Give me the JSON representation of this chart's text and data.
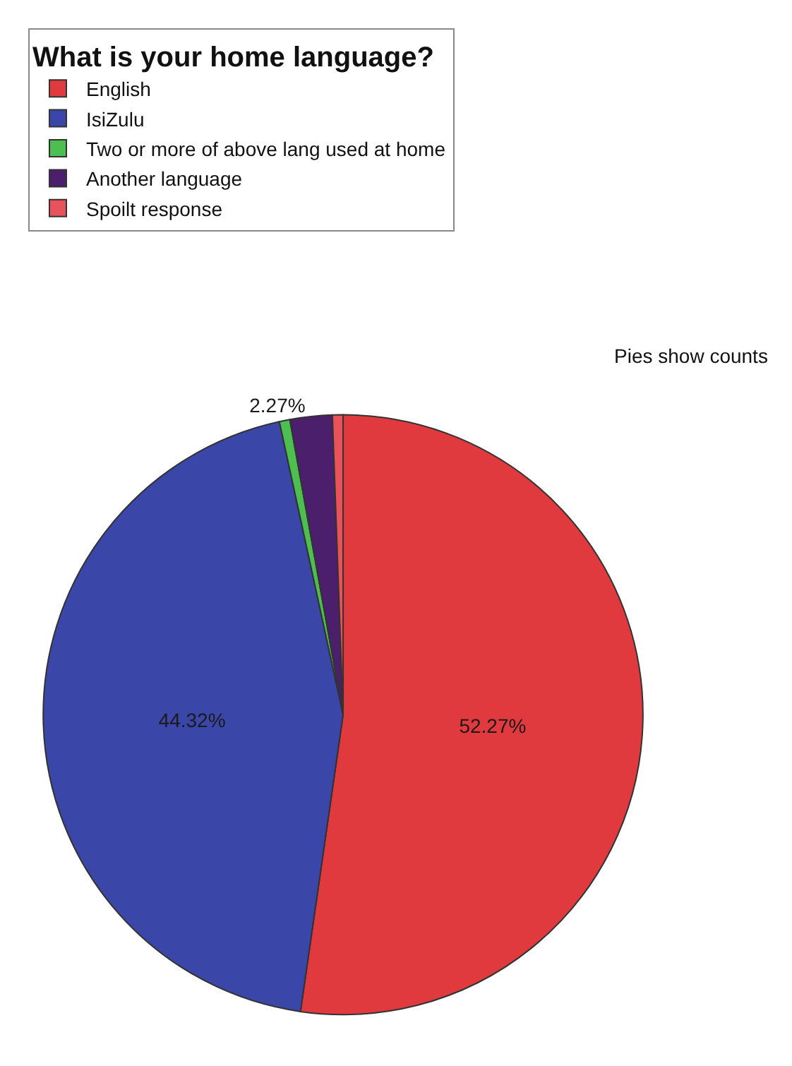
{
  "chart_data": {
    "type": "pie",
    "legend_title": "What is your home language?",
    "categories": [
      "English",
      "IsiZulu",
      "Two or more of above lang used at home",
      "Another language",
      "Spoilt response"
    ],
    "values": [
      52.27,
      44.32,
      0.57,
      2.27,
      0.57
    ],
    "colors": [
      "#e03a3e",
      "#3a46a8",
      "#4cbf50",
      "#4b1f6b",
      "#e8525a"
    ],
    "value_labels": [
      "52.27%",
      "44.32%",
      null,
      "2.27%",
      null
    ],
    "annotations": [
      "Pies show counts"
    ],
    "legend": "top left"
  }
}
